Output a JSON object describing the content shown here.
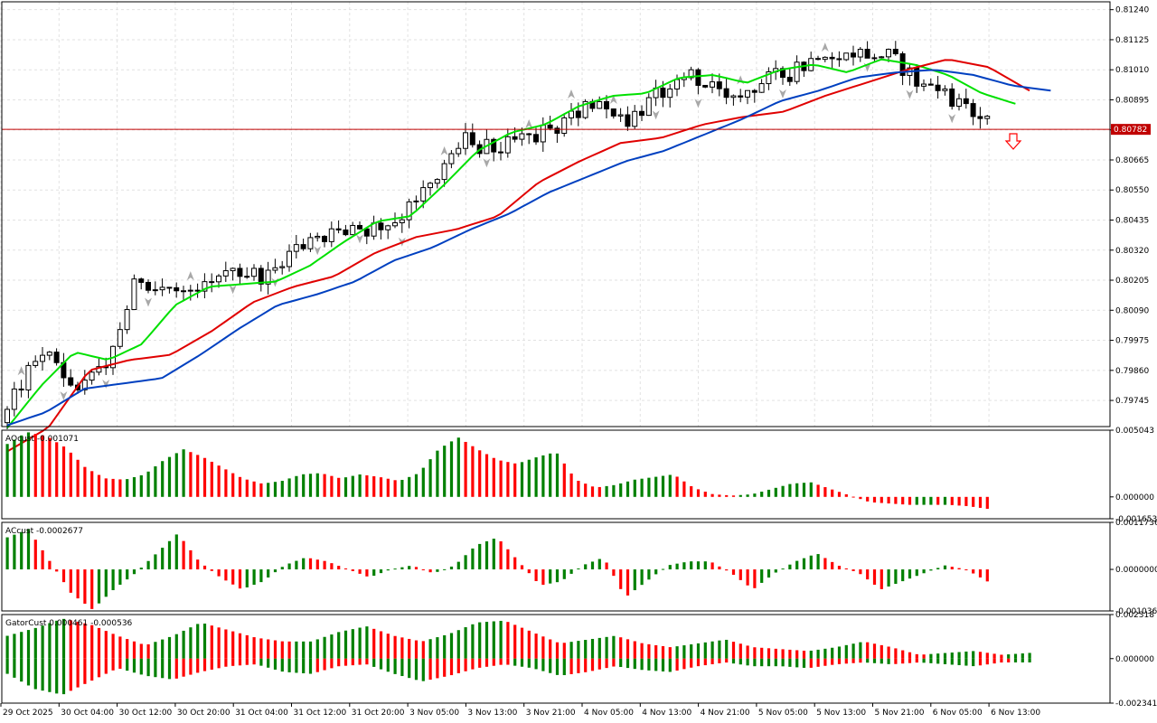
{
  "colors": {
    "bull": "#008000",
    "bear": "#ff0000",
    "ma_fast": "#00e000",
    "ma_mid": "#e00000",
    "ma_slow": "#0040c0",
    "price_line": "#c00000",
    "price_tag": "#c00000",
    "grid": "#e2e2e2",
    "fractal": "#a8a8a8"
  },
  "main": {
    "y_ticks": [
      "0.81240",
      "0.81125",
      "0.81010",
      "0.80895",
      "0.80780",
      "0.80665",
      "0.80550",
      "0.80435",
      "0.80320",
      "0.80205",
      "0.80090",
      "0.79975",
      "0.79860",
      "0.79745"
    ],
    "ylim": [
      0.79645,
      0.8127
    ],
    "current_price": "0.80782",
    "current_price_value": 0.80782
  },
  "ao": {
    "label": "AOcust -0.001071",
    "y_ticks": [
      "0.005043",
      "0.000000",
      "-0.001653"
    ],
    "ylim": [
      -0.001653,
      0.005043
    ]
  },
  "ac": {
    "label": "ACcust -0.0002677",
    "y_ticks": [
      "0.0011736",
      "0.0000000",
      "-0.0010366"
    ],
    "ylim": [
      -0.0010366,
      0.0011736
    ]
  },
  "gator": {
    "label": "GatorCust 0.000461 -0.000536",
    "y_ticks": [
      "0.002318",
      "0.000000",
      "-0.002341"
    ],
    "ylim": [
      -0.002341,
      0.002318
    ]
  },
  "x_labels": [
    "29 Oct 2025",
    "30 Oct 04:00",
    "30 Oct 12:00",
    "30 Oct 20:00",
    "31 Oct 04:00",
    "31 Oct 12:00",
    "31 Oct 20:00",
    "3 Nov 05:00",
    "3 Nov 13:00",
    "3 Nov 21:00",
    "4 Nov 05:00",
    "4 Nov 13:00",
    "4 Nov 21:00",
    "5 Nov 05:00",
    "5 Nov 13:00",
    "5 Nov 21:00",
    "6 Nov 05:00",
    "6 Nov 13:00"
  ],
  "chart_data": [
    {
      "type": "candlestick",
      "title": "",
      "x_labels": [
        "29 Oct 2025",
        "30 Oct 04:00",
        "30 Oct 12:00",
        "30 Oct 20:00",
        "31 Oct 04:00",
        "31 Oct 12:00",
        "31 Oct 20:00",
        "3 Nov 05:00",
        "3 Nov 13:00",
        "3 Nov 21:00",
        "4 Nov 05:00",
        "4 Nov 13:00",
        "4 Nov 21:00",
        "5 Nov 05:00",
        "5 Nov 13:00",
        "5 Nov 21:00",
        "6 Nov 05:00",
        "6 Nov 13:00"
      ],
      "ylim": [
        0.79645,
        0.8127
      ],
      "close_anchor": [
        0.797,
        0.7995,
        0.798,
        0.7986,
        0.8022,
        0.8016,
        0.80205,
        0.8024,
        0.8022,
        0.8035,
        0.8037,
        0.804,
        0.8044,
        0.806,
        0.8074,
        0.807,
        0.8076,
        0.808,
        0.809,
        0.8082,
        0.8092,
        0.81,
        0.8088,
        0.8096,
        0.81,
        0.8108,
        0.8108,
        0.8106,
        0.8096,
        0.8089,
        0.808
      ],
      "ma_fast_anchor": [
        0.7964,
        0.798,
        0.7993,
        0.799,
        0.7996,
        0.8011,
        0.8018,
        0.8019,
        0.802,
        0.8026,
        0.8035,
        0.8043,
        0.8045,
        0.8057,
        0.807,
        0.8077,
        0.808,
        0.8087,
        0.8091,
        0.8092,
        0.8098,
        0.8099,
        0.8096,
        0.8101,
        0.8103,
        0.81,
        0.8105,
        0.8103,
        0.8099,
        0.8092,
        0.8088
      ],
      "ma_mid_anchor": [
        0.7955,
        0.7964,
        0.7986,
        0.799,
        0.7992,
        0.8001,
        0.8012,
        0.8018,
        0.8022,
        0.8031,
        0.8037,
        0.804,
        0.8045,
        0.8058,
        0.8066,
        0.8073,
        0.8075,
        0.808,
        0.8083,
        0.8085,
        0.8091,
        0.8096,
        0.8101,
        0.8105,
        0.8102,
        0.8093
      ],
      "ma_slow_anchor": [
        0.7965,
        0.797,
        0.7979,
        0.7981,
        0.7983,
        0.7992,
        0.8002,
        0.8011,
        0.8015,
        0.802,
        0.8028,
        0.8033,
        0.804,
        0.8046,
        0.8054,
        0.806,
        0.8066,
        0.807,
        0.8076,
        0.8082,
        0.8089,
        0.8093,
        0.8098,
        0.81,
        0.8101,
        0.8099,
        0.8095,
        0.8093
      ]
    },
    {
      "type": "bar",
      "title": "AOcust -0.001071",
      "ylim": [
        -0.001653,
        0.005043
      ],
      "anchor": [
        0.004,
        0.0049,
        0.0046,
        0.0037,
        0.0022,
        0.0014,
        0.0013,
        0.0017,
        0.0028,
        0.0036,
        0.003,
        0.0022,
        0.0014,
        0.001,
        0.0012,
        0.0017,
        0.0018,
        0.0014,
        0.0017,
        0.0015,
        0.0012,
        0.0018,
        0.0036,
        0.0045,
        0.0036,
        0.0028,
        0.0025,
        0.003,
        0.0034,
        0.0013,
        0.0007,
        0.0009,
        0.0013,
        0.0015,
        0.0017,
        0.0007,
        0.0002,
        0.0001,
        0.0002,
        0.0006,
        0.001,
        0.0011,
        0.0006,
        0.0001,
        -0.0004,
        -0.0005,
        -0.0006,
        -0.0006,
        -0.0006,
        -0.0007,
        -0.0009
      ]
    },
    {
      "type": "bar",
      "title": "ACcust -0.0002677",
      "ylim": [
        -0.0010366,
        0.0011736
      ],
      "anchor": [
        0.0008,
        0.001,
        0.0002,
        -0.0006,
        -0.001,
        -0.0005,
        -0.0001,
        0.0004,
        0.0009,
        0.0002,
        -0.0002,
        -0.0005,
        -0.0003,
        0.0001,
        0.0003,
        0.0002,
        0.0,
        -0.0002,
        0.0,
        0.0001,
        -0.0001,
        0.0001,
        0.0006,
        0.0008,
        0.0002,
        -0.0004,
        -0.0003,
        0.0001,
        0.0003,
        -0.0007,
        -0.0003,
        0.0001,
        0.0002,
        0.0002,
        -0.0001,
        -0.0005,
        -0.0001,
        0.0002,
        0.0004,
        0.0001,
        -0.0001,
        -0.0005,
        -0.0003,
        -0.0001,
        0.0001,
        0.0,
        -0.0003
      ]
    },
    {
      "type": "bar",
      "title": "GatorCust 0.000461 -0.000536",
      "ylim": [
        -0.002341,
        0.002318
      ],
      "upper_anchor": [
        0.0012,
        0.0016,
        0.0021,
        0.0018,
        0.0012,
        0.0007,
        0.0012,
        0.0019,
        0.0015,
        0.0011,
        0.0009,
        0.0009,
        0.0014,
        0.0017,
        0.0012,
        0.0009,
        0.0013,
        0.0019,
        0.002,
        0.0014,
        0.0008,
        0.001,
        0.0012,
        0.0008,
        0.0006,
        0.0008,
        0.001,
        0.0006,
        0.0005,
        0.0004,
        0.0006,
        0.0009,
        0.0006,
        0.0002,
        0.0003,
        0.0004,
        0.0002,
        0.0003
      ],
      "lower_anchor": [
        -0.0008,
        -0.0016,
        -0.0019,
        -0.0012,
        -0.0005,
        -0.0009,
        -0.0011,
        -0.0007,
        -0.0004,
        -0.0003,
        -0.0007,
        -0.0008,
        -0.0004,
        -0.0003,
        -0.0008,
        -0.0012,
        -0.0009,
        -0.0005,
        -0.0003,
        -0.0005,
        -0.0009,
        -0.0007,
        -0.0004,
        -0.0006,
        -0.0007,
        -0.0004,
        -0.0002,
        -0.0004,
        -0.0004,
        -0.0005,
        -0.0003,
        -0.0002,
        -0.0003,
        -0.0002,
        -0.0003,
        -0.0004,
        -0.0002,
        -0.0002
      ]
    }
  ]
}
